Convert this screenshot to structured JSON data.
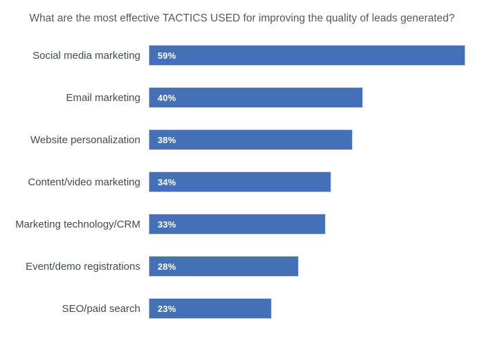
{
  "chart_data": {
    "type": "bar",
    "orientation": "horizontal",
    "title": "What are the most effective TACTICS USED for improving the quality of leads generated?",
    "categories": [
      "Social media marketing",
      "Email marketing",
      "Website personalization",
      "Content/video marketing",
      "Marketing technology/CRM",
      "Event/demo registrations",
      "SEO/paid search"
    ],
    "values": [
      59,
      40,
      38,
      34,
      33,
      28,
      23
    ],
    "value_labels": [
      "59%",
      "40%",
      "38%",
      "34%",
      "33%",
      "28%",
      "23%"
    ],
    "xlabel": "",
    "ylabel": "",
    "xlim": [
      0,
      61.5
    ],
    "grid": false,
    "legend": false,
    "bar_color": "#4470b8",
    "bar_border_color": "#ccd1d9",
    "value_label_color": "#ffffff",
    "title_color": "#595959",
    "category_label_color": "#414a57",
    "background_color": "#ffffff"
  }
}
